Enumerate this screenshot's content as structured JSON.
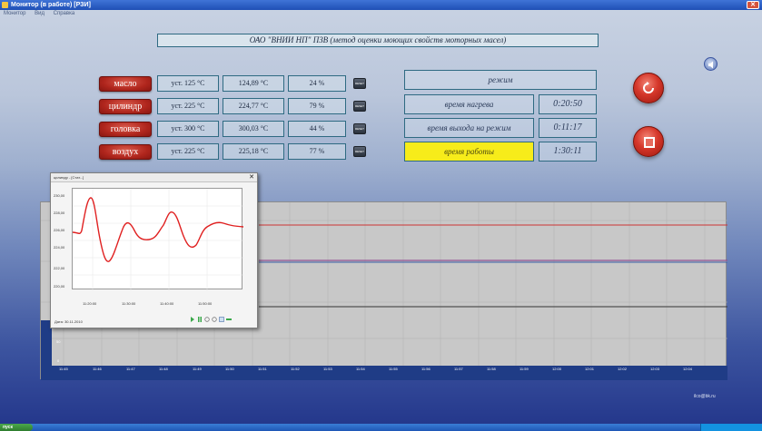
{
  "window": {
    "title": "Монитор (в работе) [РЗИ]",
    "menu": [
      "Монитор",
      "Вид",
      "Справка"
    ]
  },
  "header": {
    "text": "ОАО \"ВНИИ НП\" ПЗВ (метод оценки моющих свойств моторных масел)"
  },
  "sensors": [
    {
      "name": "масло",
      "setpoint": "уст. 125 °С",
      "value": "124,89 °С",
      "percent": "24 %"
    },
    {
      "name": "цилиндр",
      "setpoint": "уст. 225 °С",
      "value": "224,77 °С",
      "percent": "79 %"
    },
    {
      "name": "головка",
      "setpoint": "уст. 300 °С",
      "value": "300,03 °С",
      "percent": "44 %"
    },
    {
      "name": "воздух",
      "setpoint": "уст. 225 °С",
      "value": "225,18 °С",
      "percent": "77 %"
    }
  ],
  "status": {
    "mode_label": "режим",
    "heating_label": "время нагрева",
    "heating_time": "0:20:50",
    "reach_label": "время выхода на режим",
    "reach_time": "0:11:17",
    "work_label": "время работы",
    "work_time": "1:30:11",
    "work_highlight_color": "#f7ec1a"
  },
  "chart": {
    "x_ticks": [
      "11:45",
      "11:46",
      "11:47",
      "11:48",
      "11:49",
      "11:50",
      "11:51",
      "11:52",
      "11:53",
      "11:54",
      "11:55",
      "11:56",
      "11:57",
      "11:58",
      "11:59",
      "12:00",
      "12:01",
      "12:02",
      "12:03",
      "12:04"
    ],
    "y_ticks": [
      "50",
      "0"
    ],
    "line_colors": [
      "#cc3333",
      "#8a3a8a",
      "#3a5ea8",
      "#333333"
    ]
  },
  "popup": {
    "title": "цилиндр - [Стат...]",
    "y_ticks": [
      "230,00",
      "228,00",
      "226,00",
      "224,00",
      "222,00",
      "220,00"
    ],
    "x_ticks": [
      "11:20:00",
      "11:30:00",
      "11:40:00",
      "11:50:00"
    ],
    "date_label": "Дата: 30.11.2010",
    "line_color": "#e02020"
  },
  "footer": {
    "email": "ilco@bk.ru"
  },
  "taskbar": {
    "start": "пуск"
  }
}
